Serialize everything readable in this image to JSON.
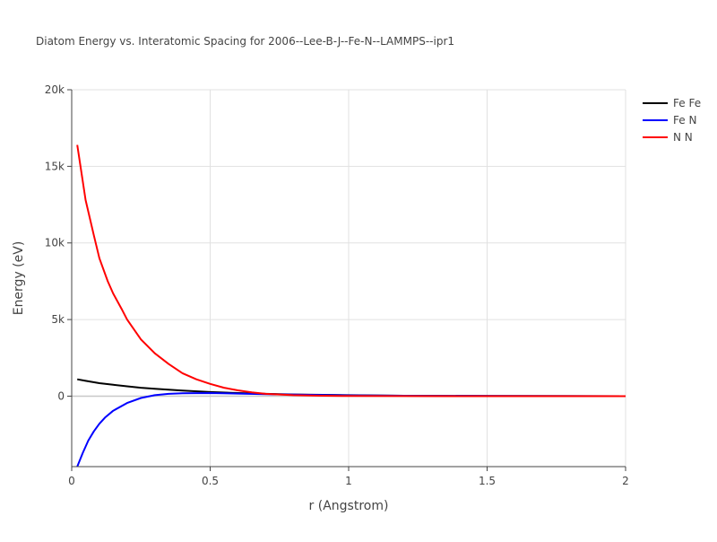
{
  "chart_data": {
    "type": "line",
    "title": "Diatom Energy vs. Interatomic Spacing for 2006--Lee-B-J--Fe-N--LAMMPS--ipr1",
    "xlabel": "r (Angstrom)",
    "ylabel": "Energy (eV)",
    "xlim": [
      0,
      2
    ],
    "ylim": [
      -4600,
      20000
    ],
    "x_ticks": [
      0,
      0.5,
      1,
      1.5,
      2
    ],
    "x_tick_labels": [
      "0",
      "0.5",
      "1",
      "1.5",
      "2"
    ],
    "y_ticks": [
      0,
      5000,
      10000,
      15000,
      20000
    ],
    "y_tick_labels": [
      "0",
      "5k",
      "10k",
      "15k",
      "20k"
    ],
    "grid": true,
    "legend_position": "top-right",
    "series": [
      {
        "name": "Fe Fe",
        "color": "#000000",
        "x": [
          0.02,
          0.05,
          0.1,
          0.15,
          0.2,
          0.25,
          0.3,
          0.35,
          0.4,
          0.5,
          0.6,
          0.7,
          0.8,
          1.0,
          1.2,
          1.5,
          2.0
        ],
        "y": [
          1100,
          1000,
          850,
          740,
          640,
          550,
          480,
          420,
          360,
          270,
          200,
          150,
          110,
          60,
          30,
          10,
          0
        ]
      },
      {
        "name": "Fe N",
        "color": "#0000ff",
        "x": [
          0.02,
          0.04,
          0.06,
          0.08,
          0.1,
          0.12,
          0.15,
          0.2,
          0.25,
          0.3,
          0.35,
          0.4,
          0.5,
          0.6,
          0.7,
          0.8,
          1.0,
          1.2,
          1.5,
          2.0
        ],
        "y": [
          -4600,
          -3700,
          -2900,
          -2300,
          -1800,
          -1400,
          -950,
          -450,
          -120,
          60,
          150,
          190,
          200,
          170,
          130,
          100,
          50,
          25,
          8,
          0
        ]
      },
      {
        "name": "N N",
        "color": "#ff0000",
        "x": [
          0.02,
          0.05,
          0.08,
          0.1,
          0.13,
          0.15,
          0.18,
          0.2,
          0.25,
          0.3,
          0.35,
          0.4,
          0.45,
          0.5,
          0.55,
          0.6,
          0.65,
          0.7,
          0.8,
          0.9,
          1.0,
          1.2,
          1.5,
          2.0
        ],
        "y": [
          16400,
          12800,
          10500,
          9000,
          7500,
          6700,
          5700,
          5000,
          3700,
          2800,
          2100,
          1500,
          1100,
          800,
          550,
          380,
          250,
          150,
          60,
          25,
          10,
          3,
          0,
          0
        ]
      }
    ]
  }
}
